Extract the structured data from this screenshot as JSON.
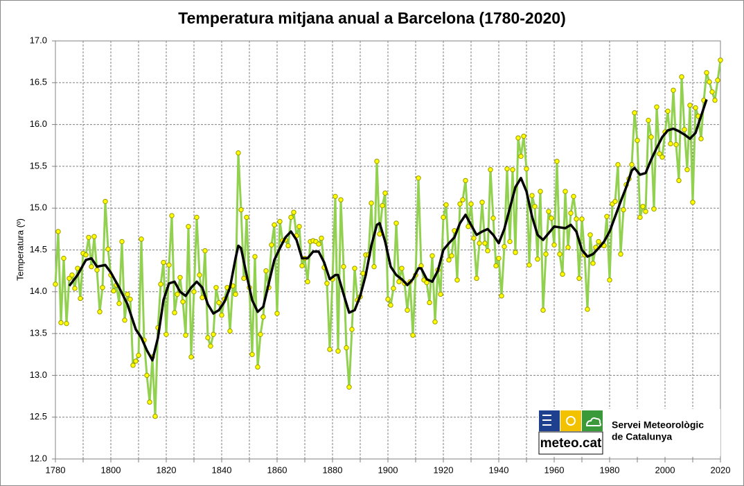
{
  "chart_data": {
    "type": "line",
    "title": "Temperatura mitjana anual a Barcelona (1780-2020)",
    "ylabel": "Temperatura  (º)",
    "xlim": [
      1780,
      2020
    ],
    "xticks": [
      1780,
      1800,
      1820,
      1840,
      1860,
      1880,
      1900,
      1920,
      1940,
      1960,
      1980,
      2000,
      2020
    ],
    "xminorticks": [
      1790,
      1810,
      1830,
      1850,
      1870,
      1890,
      1910,
      1930,
      1950,
      1970,
      1990,
      2010
    ],
    "ylim": [
      12,
      17
    ],
    "yticks": [
      {
        "value": 12,
        "label": "12.0"
      },
      12.5,
      {
        "value": 13,
        "label": "13.0"
      },
      13.5,
      {
        "value": 14,
        "label": "14.0"
      },
      14.5,
      {
        "value": 15,
        "label": "15.0"
      },
      15.5,
      {
        "value": 16,
        "label": "16.0"
      },
      16.5,
      {
        "value": 17,
        "label": "17.0"
      }
    ],
    "grid": true,
    "series": [
      {
        "color": "#92d050",
        "marker_color": "#ffff00",
        "x": [
          1780,
          1781,
          1782,
          1783,
          1784,
          1785,
          1786,
          1787,
          1788,
          1789,
          1790,
          1791,
          1792,
          1793,
          1794,
          1795,
          1796,
          1797,
          1798,
          1799,
          1800,
          1801,
          1802,
          1803,
          1804,
          1805,
          1806,
          1807,
          1808,
          1809,
          1810,
          1811,
          1812,
          1813,
          1814,
          1815,
          1816,
          1817,
          1818,
          1819,
          1820,
          1821,
          1822,
          1823,
          1824,
          1825,
          1826,
          1827,
          1828,
          1829,
          1830,
          1831,
          1832,
          1833,
          1834,
          1835,
          1836,
          1837,
          1838,
          1839,
          1840,
          1841,
          1842,
          1843,
          1844,
          1845,
          1846,
          1847,
          1848,
          1849,
          1850,
          1851,
          1852,
          1853,
          1854,
          1855,
          1856,
          1857,
          1858,
          1859,
          1860,
          1861,
          1862,
          1863,
          1864,
          1865,
          1866,
          1867,
          1868,
          1869,
          1870,
          1871,
          1872,
          1873,
          1874,
          1875,
          1876,
          1877,
          1878,
          1879,
          1880,
          1881,
          1882,
          1883,
          1884,
          1885,
          1886,
          1887,
          1888,
          1889,
          1890,
          1891,
          1892,
          1893,
          1894,
          1895,
          1896,
          1897,
          1898,
          1899,
          1900,
          1901,
          1902,
          1903,
          1904,
          1905,
          1906,
          1907,
          1908,
          1909,
          1910,
          1911,
          1912,
          1913,
          1914,
          1915,
          1916,
          1917,
          1918,
          1919,
          1920,
          1921,
          1922,
          1923,
          1924,
          1925,
          1926,
          1927,
          1928,
          1929,
          1930,
          1931,
          1932,
          1933,
          1934,
          1935,
          1936,
          1937,
          1938,
          1939,
          1940,
          1941,
          1942,
          1943,
          1944,
          1945,
          1946,
          1947,
          1948,
          1949,
          1950,
          1951,
          1952,
          1953,
          1954,
          1955,
          1956,
          1957,
          1958,
          1959,
          1960,
          1961,
          1962,
          1963,
          1964,
          1965,
          1966,
          1967,
          1968,
          1969,
          1970,
          1971,
          1972,
          1973,
          1974,
          1975,
          1976,
          1977,
          1978,
          1979,
          1980,
          1981,
          1982,
          1983,
          1984,
          1985,
          1986,
          1987,
          1988,
          1989,
          1990,
          1991,
          1992,
          1993,
          1994,
          1995,
          1996,
          1997,
          1998,
          1999,
          2000,
          2001,
          2002,
          2003,
          2004,
          2005,
          2006,
          2007,
          2008,
          2009,
          2010,
          2011,
          2012,
          2013,
          2014,
          2015,
          2016,
          2017,
          2018,
          2019,
          2020
        ],
        "values": [
          14.09,
          14.72,
          13.63,
          14.4,
          13.62,
          14.16,
          14.2,
          14.04,
          14.28,
          13.92,
          14.46,
          14.44,
          14.65,
          14.3,
          14.66,
          14.26,
          13.76,
          14.05,
          15.08,
          14.51,
          14.2,
          14.01,
          14.08,
          13.86,
          14.6,
          13.66,
          13.97,
          13.91,
          13.12,
          13.17,
          13.24,
          14.63,
          13.42,
          13.0,
          12.68,
          13.22,
          12.51,
          13.57,
          14.09,
          14.35,
          13.49,
          14.32,
          14.91,
          13.75,
          13.97,
          14.17,
          13.88,
          13.48,
          14.78,
          13.22,
          14.0,
          14.89,
          14.2,
          13.93,
          14.49,
          13.45,
          13.35,
          13.49,
          14.05,
          13.87,
          13.72,
          13.91,
          14.05,
          13.53,
          14.07,
          13.97,
          15.66,
          14.98,
          14.16,
          14.89,
          14.05,
          13.25,
          14.42,
          13.1,
          13.49,
          13.7,
          14.25,
          14.05,
          14.56,
          14.8,
          13.74,
          14.84,
          14.61,
          14.62,
          14.55,
          14.89,
          14.95,
          14.67,
          14.78,
          14.31,
          14.4,
          14.12,
          14.6,
          14.61,
          14.6,
          14.57,
          14.64,
          14.29,
          14.1,
          13.31,
          14.15,
          15.14,
          13.29,
          15.1,
          14.3,
          13.33,
          12.86,
          13.55,
          14.28,
          13.9,
          13.94,
          14.22,
          14.44,
          14.44,
          15.06,
          14.3,
          15.56,
          14.69,
          15.03,
          15.18,
          13.91,
          13.84,
          14.04,
          14.82,
          14.12,
          14.28,
          14.1,
          13.78,
          14.12,
          13.48,
          14.2,
          15.36,
          14.31,
          14.14,
          14.11,
          13.87,
          14.43,
          13.64,
          14.26,
          13.97,
          14.89,
          15.04,
          14.38,
          14.43,
          14.73,
          14.14,
          15.05,
          15.1,
          15.33,
          14.78,
          15.05,
          14.64,
          14.16,
          14.58,
          15.07,
          14.58,
          14.49,
          15.46,
          14.88,
          14.31,
          14.4,
          13.95,
          14.54,
          15.47,
          14.6,
          15.46,
          14.47,
          15.84,
          15.62,
          15.86,
          15.47,
          14.32,
          15.15,
          15.02,
          14.39,
          15.2,
          13.78,
          14.45,
          14.96,
          14.88,
          14.56,
          15.56,
          14.45,
          14.21,
          15.2,
          14.53,
          14.94,
          15.14,
          14.87,
          14.16,
          14.87,
          14.44,
          13.79,
          14.68,
          14.34,
          14.53,
          14.6,
          14.56,
          14.55,
          14.9,
          14.14,
          15.05,
          15.08,
          15.52,
          14.45,
          14.98,
          15.28,
          15.35,
          15.52,
          16.14,
          15.81,
          14.89,
          15.02,
          14.96,
          16.05,
          15.85,
          14.99,
          16.21,
          15.65,
          15.61,
          15.91,
          16.16,
          15.77,
          16.41,
          15.76,
          15.33,
          16.57,
          15.94,
          15.46,
          16.23,
          15.07,
          16.2,
          16.1,
          15.83,
          16.29,
          16.62,
          16.51,
          16.39,
          16.29,
          16.53,
          16.77
        ]
      },
      {
        "color": "#000000",
        "x": [
          1785,
          1788,
          1791,
          1793,
          1795,
          1798,
          1800,
          1803,
          1806,
          1809,
          1811,
          1813,
          1815,
          1817,
          1819,
          1821,
          1823,
          1825,
          1827,
          1829,
          1831,
          1833,
          1835,
          1837,
          1839,
          1841,
          1843,
          1845,
          1846,
          1847,
          1849,
          1851,
          1853,
          1855,
          1857,
          1859,
          1861,
          1863,
          1865,
          1867,
          1869,
          1871,
          1873,
          1875,
          1877,
          1879,
          1881,
          1882,
          1884,
          1886,
          1888,
          1890,
          1892,
          1894,
          1896,
          1897,
          1899,
          1901,
          1903,
          1905,
          1907,
          1909,
          1911,
          1912,
          1914,
          1916,
          1918,
          1920,
          1922,
          1924,
          1926,
          1928,
          1930,
          1932,
          1934,
          1936,
          1938,
          1940,
          1942,
          1944,
          1946,
          1948,
          1950,
          1952,
          1954,
          1956,
          1958,
          1960,
          1962,
          1964,
          1966,
          1968,
          1970,
          1972,
          1974,
          1976,
          1978,
          1980,
          1982,
          1984,
          1986,
          1988,
          1989,
          1991,
          1993,
          1995,
          1997,
          1999,
          2001,
          2003,
          2005,
          2007,
          2009,
          2011,
          2013,
          2015
        ],
        "values": [
          14.07,
          14.2,
          14.38,
          14.4,
          14.3,
          14.32,
          14.23,
          14.05,
          13.85,
          13.55,
          13.45,
          13.3,
          13.18,
          13.45,
          13.9,
          14.1,
          14.12,
          14.0,
          13.95,
          14.05,
          14.12,
          14.05,
          13.85,
          13.74,
          13.78,
          13.88,
          14.05,
          14.4,
          14.55,
          14.52,
          14.2,
          13.9,
          13.76,
          13.82,
          14.1,
          14.38,
          14.52,
          14.65,
          14.72,
          14.62,
          14.4,
          14.4,
          14.48,
          14.48,
          14.35,
          14.15,
          14.2,
          14.2,
          13.97,
          13.75,
          13.78,
          13.95,
          14.2,
          14.55,
          14.8,
          14.82,
          14.6,
          14.3,
          14.2,
          14.15,
          14.08,
          14.15,
          14.28,
          14.28,
          14.15,
          14.12,
          14.25,
          14.5,
          14.58,
          14.65,
          14.82,
          14.92,
          14.8,
          14.68,
          14.72,
          14.75,
          14.68,
          14.58,
          14.75,
          15.0,
          15.25,
          15.36,
          15.2,
          14.9,
          14.68,
          14.62,
          14.7,
          14.78,
          14.77,
          14.76,
          14.8,
          14.72,
          14.5,
          14.42,
          14.45,
          14.52,
          14.6,
          14.72,
          14.9,
          15.08,
          15.25,
          15.45,
          15.48,
          15.4,
          15.42,
          15.58,
          15.72,
          15.85,
          15.93,
          15.95,
          15.92,
          15.88,
          15.83,
          15.9,
          16.1,
          16.3
        ]
      }
    ],
    "logo": {
      "brand": "meteo.cat",
      "line1": "Servei Meteorològic",
      "line2": "de Catalunya"
    }
  }
}
